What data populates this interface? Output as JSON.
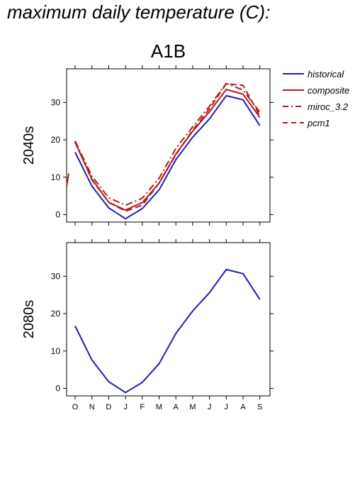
{
  "main_title": "maximum daily temperature (C):",
  "colors": {
    "historical": "#1f1fb4",
    "composite": "#b31b1b",
    "miroc_3.2": "#b31b1b",
    "pcm1": "#b31b1b"
  },
  "chart_data": [
    {
      "type": "line",
      "title": "A1B",
      "ylabel": "2040s",
      "categories": [
        "O",
        "N",
        "D",
        "J",
        "F",
        "M",
        "A",
        "M",
        "J",
        "J",
        "A",
        "S"
      ],
      "ylim": [
        -2,
        39
      ],
      "yticks": [
        0,
        10,
        20,
        30
      ],
      "legend": {
        "position": "right",
        "entries": [
          "historical",
          "composite",
          "miroc_3.2",
          "pcm1"
        ]
      },
      "series": [
        {
          "name": "historical",
          "style": "solid",
          "values": [
            16.7,
            7.6,
            1.8,
            -1.1,
            1.6,
            6.6,
            14.7,
            20.7,
            25.6,
            31.8,
            30.7,
            23.8
          ]
        },
        {
          "name": "composite",
          "style": "solid",
          "values": [
            19.3,
            9.5,
            3.3,
            1.2,
            3.2,
            8.4,
            16.2,
            22.3,
            27.5,
            33.5,
            32.2,
            26.0
          ]
        },
        {
          "name": "miroc_3.2",
          "style": "dashdot",
          "values": [
            19.7,
            10.3,
            4.5,
            2.5,
            4.4,
            9.7,
            17.7,
            23.5,
            29.0,
            35.1,
            33.3,
            27.4
          ]
        },
        {
          "name": "pcm1",
          "style": "dashed",
          "values": [
            19.5,
            9.3,
            3.3,
            0.9,
            2.5,
            8.4,
            16.0,
            22.6,
            28.3,
            35.0,
            34.6,
            26.5
          ]
        }
      ],
      "annotation_left": [
        [
          7.5,
          11
        ],
        "partial composite line at left edge"
      ]
    },
    {
      "type": "line",
      "ylabel": "2080s",
      "categories": [
        "O",
        "N",
        "D",
        "J",
        "F",
        "M",
        "A",
        "M",
        "J",
        "J",
        "A",
        "S"
      ],
      "ylim": [
        -2,
        39
      ],
      "yticks": [
        0,
        10,
        20,
        30
      ],
      "series": [
        {
          "name": "historical",
          "style": "solid",
          "values": [
            16.7,
            7.6,
            1.8,
            -1.1,
            1.6,
            6.6,
            14.7,
            20.7,
            25.6,
            31.8,
            30.7,
            23.8
          ]
        }
      ]
    }
  ]
}
